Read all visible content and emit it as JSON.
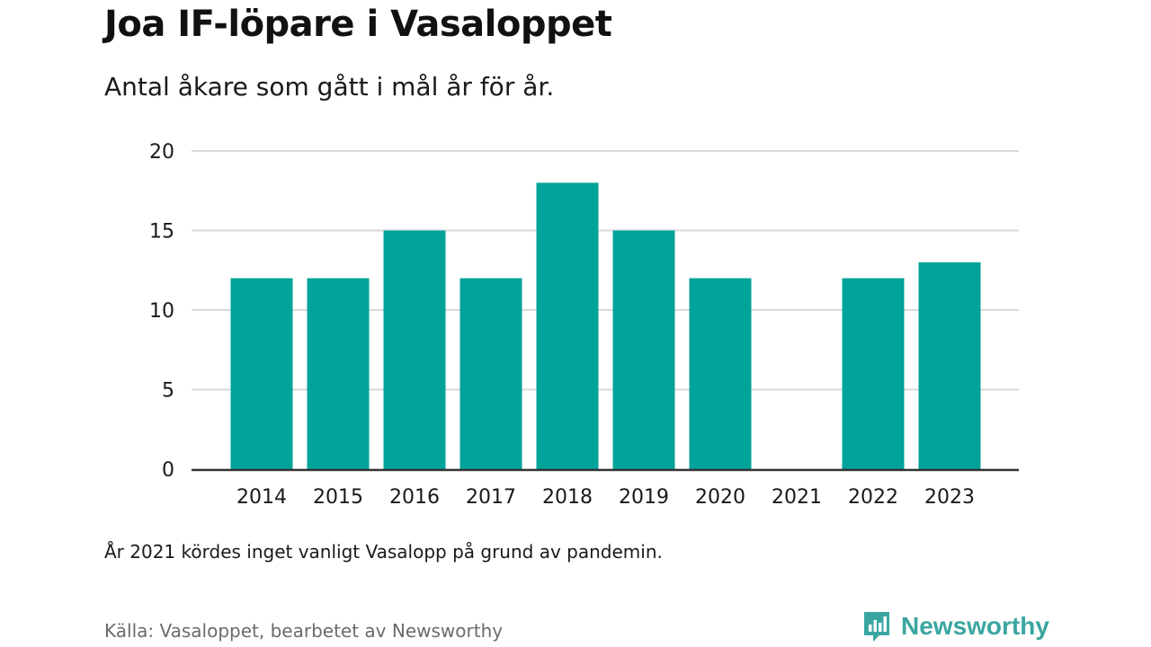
{
  "header": {
    "title": "Joa IF-löpare i Vasaloppet",
    "subtitle": "Antal åkare som gått i mål år för år."
  },
  "footer": {
    "note": "År 2021 kördes inget vanligt Vasalopp på grund av pandemin.",
    "source": "Källa: Vasaloppet, bearbetet av Newsworthy",
    "brand": "Newsworthy",
    "brand_icon": "newsworthy-logo-icon"
  },
  "colors": {
    "bar": "#00a39a",
    "grid": "#d9d9d9",
    "axis": "#333333",
    "brand": "#3aa6a0"
  },
  "chart_data": {
    "type": "bar",
    "title": "Joa IF-löpare i Vasaloppet",
    "subtitle": "Antal åkare som gått i mål år för år.",
    "xlabel": "",
    "ylabel": "",
    "categories": [
      "2014",
      "2015",
      "2016",
      "2017",
      "2018",
      "2019",
      "2020",
      "2021",
      "2022",
      "2023"
    ],
    "values": [
      12,
      12,
      15,
      12,
      18,
      15,
      12,
      0,
      12,
      13
    ],
    "ylim": [
      0,
      20
    ],
    "yticks": [
      0,
      5,
      10,
      15,
      20
    ],
    "grid": true,
    "legend": "none"
  }
}
